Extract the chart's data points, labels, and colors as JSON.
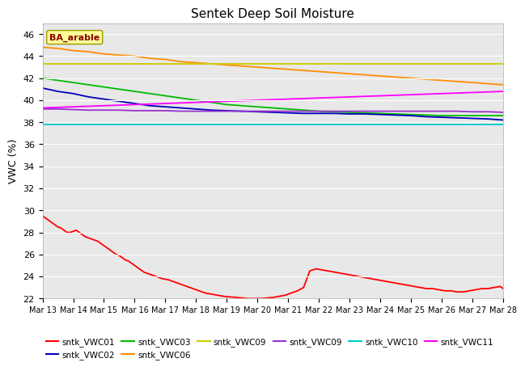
{
  "title": "Sentek Deep Soil Moisture",
  "ylabel": "VWC (%)",
  "ylim": [
    22,
    47
  ],
  "yticks": [
    22,
    24,
    26,
    28,
    30,
    32,
    34,
    36,
    38,
    40,
    42,
    44,
    46
  ],
  "xtick_labels": [
    "Mar 13",
    "Mar 14",
    "Mar 15",
    "Mar 16",
    "Mar 17",
    "Mar 18",
    "Mar 19",
    "Mar 20",
    "Mar 21",
    "Mar 22",
    "Mar 23",
    "Mar 24",
    "Mar 25",
    "Mar 26",
    "Mar 27",
    "Mar 28"
  ],
  "annotation_text": "BA_arable",
  "annotation_color": "#8B0000",
  "annotation_bg": "#FFFF99",
  "annotation_edge": "#999900",
  "bg_color": "#E8E8E8",
  "grid_color": "#FFFFFF",
  "series": {
    "sntk_VWC01": {
      "color": "#FF0000",
      "label": "sntk_VWC01",
      "x": [
        0,
        0.1,
        0.2,
        0.3,
        0.4,
        0.5,
        0.6,
        0.7,
        0.8,
        0.9,
        1.0,
        1.1,
        1.2,
        1.3,
        1.4,
        1.5,
        1.6,
        1.7,
        1.8,
        1.9,
        2.0,
        2.1,
        2.2,
        2.3,
        2.4,
        2.5,
        2.6,
        2.7,
        2.8,
        2.9,
        3.0,
        3.1,
        3.2,
        3.3,
        3.5,
        3.7,
        3.9,
        4.1,
        4.3,
        4.5,
        4.7,
        4.9,
        5.1,
        5.3,
        5.5,
        5.7,
        5.9,
        6.1,
        6.3,
        6.5,
        6.7,
        6.9,
        7.1,
        7.3,
        7.5,
        7.7,
        7.9,
        8.1,
        8.3,
        8.5,
        8.7,
        8.9,
        9.1,
        9.3,
        9.5,
        9.7,
        9.9,
        10.1,
        10.3,
        10.5,
        10.7,
        10.9,
        11.1,
        11.3,
        11.5,
        11.7,
        11.9,
        12.1,
        12.3,
        12.5,
        12.7,
        12.9,
        13.1,
        13.3,
        13.5,
        13.7,
        13.9,
        14.1,
        14.3,
        14.5,
        14.7,
        14.9,
        15.0
      ],
      "y": [
        29.5,
        29.3,
        29.1,
        28.9,
        28.7,
        28.5,
        28.4,
        28.2,
        28.0,
        28.0,
        28.1,
        28.2,
        28.0,
        27.8,
        27.6,
        27.5,
        27.4,
        27.3,
        27.2,
        27.0,
        26.8,
        26.6,
        26.4,
        26.2,
        26.0,
        25.9,
        25.7,
        25.5,
        25.4,
        25.2,
        25.0,
        24.8,
        24.6,
        24.4,
        24.2,
        24.0,
        23.8,
        23.7,
        23.5,
        23.3,
        23.1,
        22.9,
        22.7,
        22.5,
        22.4,
        22.3,
        22.2,
        22.15,
        22.1,
        22.05,
        22.0,
        22.0,
        22.0,
        22.05,
        22.1,
        22.2,
        22.3,
        22.5,
        22.7,
        23.0,
        24.5,
        24.7,
        24.6,
        24.5,
        24.4,
        24.3,
        24.2,
        24.1,
        24.0,
        23.9,
        23.8,
        23.7,
        23.6,
        23.5,
        23.4,
        23.3,
        23.2,
        23.1,
        23.0,
        22.9,
        22.9,
        22.8,
        22.7,
        22.7,
        22.6,
        22.6,
        22.7,
        22.8,
        22.9,
        22.9,
        23.0,
        23.1,
        22.9
      ]
    },
    "sntk_VWC02": {
      "color": "#0000BB",
      "label": "sntk_VWC02",
      "x": [
        0,
        0.5,
        1.0,
        1.5,
        2.0,
        2.5,
        3.0,
        3.5,
        4.0,
        4.5,
        5.0,
        5.5,
        6.0,
        6.5,
        7.0,
        7.5,
        8.0,
        8.5,
        9.0,
        9.5,
        10.0,
        10.5,
        11.0,
        11.5,
        12.0,
        12.5,
        13.0,
        13.5,
        14.0,
        14.5,
        15.0
      ],
      "y": [
        41.1,
        40.8,
        40.6,
        40.3,
        40.1,
        39.9,
        39.7,
        39.5,
        39.4,
        39.3,
        39.2,
        39.1,
        39.05,
        39.0,
        38.95,
        38.9,
        38.85,
        38.8,
        38.8,
        38.8,
        38.75,
        38.75,
        38.7,
        38.65,
        38.6,
        38.5,
        38.45,
        38.4,
        38.35,
        38.3,
        38.2
      ]
    },
    "sntk_VWC03": {
      "color": "#00BB00",
      "label": "sntk_VWC03",
      "x": [
        0,
        0.5,
        1.0,
        1.5,
        2.0,
        2.5,
        3.0,
        3.5,
        4.0,
        4.5,
        5.0,
        5.5,
        6.0,
        6.5,
        7.0,
        7.5,
        8.0,
        8.5,
        9.0,
        9.5,
        10.0,
        10.5,
        11.0,
        11.5,
        12.0,
        12.5,
        13.0,
        13.5,
        14.0,
        14.5,
        15.0
      ],
      "y": [
        42.0,
        41.8,
        41.6,
        41.4,
        41.2,
        41.0,
        40.8,
        40.6,
        40.4,
        40.2,
        40.0,
        39.8,
        39.6,
        39.5,
        39.4,
        39.3,
        39.2,
        39.1,
        39.0,
        38.95,
        38.9,
        38.85,
        38.8,
        38.75,
        38.7,
        38.65,
        38.6,
        38.6,
        38.6,
        38.6,
        38.6
      ]
    },
    "sntk_VWC06": {
      "color": "#FF8C00",
      "label": "sntk_VWC06",
      "x": [
        0,
        0.5,
        1.0,
        1.5,
        2.0,
        2.5,
        3.0,
        3.5,
        4.0,
        4.5,
        5.0,
        5.5,
        6.0,
        6.5,
        7.0,
        7.5,
        8.0,
        8.5,
        9.0,
        9.5,
        10.0,
        10.5,
        11.0,
        11.5,
        12.0,
        12.5,
        13.0,
        13.5,
        14.0,
        14.5,
        15.0
      ],
      "y": [
        44.8,
        44.7,
        44.5,
        44.4,
        44.2,
        44.1,
        44.0,
        43.8,
        43.7,
        43.5,
        43.4,
        43.3,
        43.2,
        43.1,
        43.0,
        42.9,
        42.8,
        42.7,
        42.6,
        42.5,
        42.4,
        42.3,
        42.2,
        42.1,
        42.0,
        41.9,
        41.8,
        41.7,
        41.6,
        41.5,
        41.4
      ]
    },
    "sntk_VWC09_yellow": {
      "color": "#CCCC00",
      "label": "sntk_VWC09",
      "x": [
        0,
        15
      ],
      "y": [
        43.3,
        43.3
      ]
    },
    "sntk_VWC09_purple": {
      "color": "#9933CC",
      "label": "sntk_VWC09",
      "x": [
        0,
        0.5,
        1.0,
        1.5,
        2.0,
        2.5,
        3.0,
        3.5,
        4.0,
        4.5,
        5.0,
        5.5,
        6.0,
        6.5,
        7.0,
        7.5,
        8.0,
        8.5,
        9.0,
        9.5,
        10.0,
        10.5,
        11.0,
        11.5,
        12.0,
        12.5,
        13.0,
        13.5,
        14.0,
        14.5,
        15.0
      ],
      "y": [
        39.2,
        39.2,
        39.15,
        39.1,
        39.1,
        39.1,
        39.05,
        39.05,
        39.05,
        39.0,
        39.0,
        39.0,
        39.0,
        39.0,
        39.0,
        39.0,
        39.0,
        39.0,
        39.0,
        39.0,
        39.0,
        39.0,
        39.0,
        39.0,
        39.0,
        39.0,
        39.0,
        39.0,
        38.95,
        38.95,
        38.9
      ]
    },
    "sntk_VWC10": {
      "color": "#00CCCC",
      "label": "sntk_VWC10",
      "x": [
        0,
        15
      ],
      "y": [
        37.8,
        37.8
      ]
    },
    "sntk_VWC11": {
      "color": "#FF00FF",
      "label": "sntk_VWC11",
      "x": [
        0,
        0.5,
        1.0,
        1.5,
        2.0,
        2.5,
        3.0,
        3.5,
        4.0,
        4.5,
        5.0,
        5.5,
        6.0,
        6.5,
        7.0,
        7.5,
        8.0,
        8.5,
        9.0,
        9.5,
        10.0,
        10.5,
        11.0,
        11.5,
        12.0,
        12.5,
        13.0,
        13.5,
        14.0,
        14.5,
        15.0
      ],
      "y": [
        39.3,
        39.35,
        39.4,
        39.45,
        39.5,
        39.55,
        39.6,
        39.65,
        39.7,
        39.75,
        39.8,
        39.85,
        39.9,
        39.95,
        40.0,
        40.05,
        40.1,
        40.15,
        40.2,
        40.25,
        40.3,
        40.35,
        40.4,
        40.45,
        40.5,
        40.55,
        40.6,
        40.65,
        40.7,
        40.75,
        40.8
      ]
    }
  },
  "legend_entries": [
    {
      "color": "#FF0000",
      "label": "sntk_VWC01"
    },
    {
      "color": "#0000BB",
      "label": "sntk_VWC02"
    },
    {
      "color": "#00BB00",
      "label": "sntk_VWC03"
    },
    {
      "color": "#FF8C00",
      "label": "sntk_VWC06"
    },
    {
      "color": "#CCCC00",
      "label": "sntk_VWC09"
    },
    {
      "color": "#9933CC",
      "label": "sntk_VWC09"
    },
    {
      "color": "#00CCCC",
      "label": "sntk_VWC10"
    },
    {
      "color": "#FF00FF",
      "label": "sntk_VWC11"
    }
  ]
}
